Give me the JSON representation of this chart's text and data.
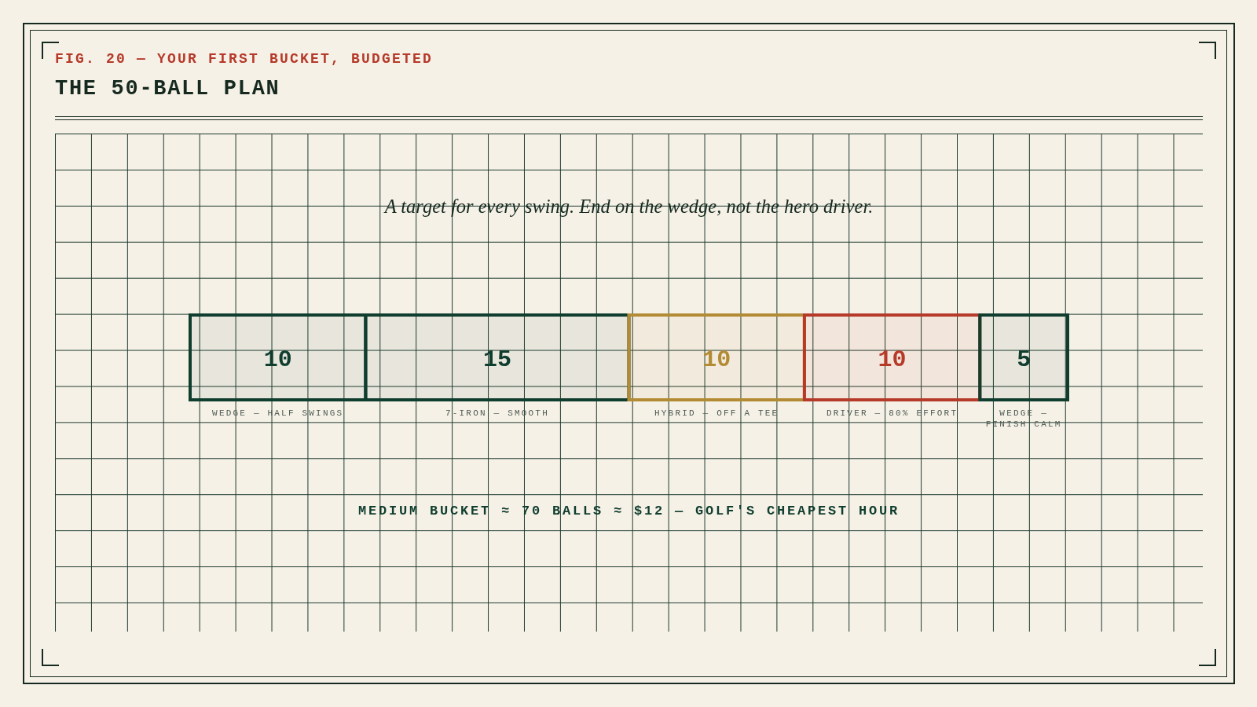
{
  "chart_data": {
    "type": "bar",
    "title": "THE 50-BALL PLAN",
    "subtitle": "A target for every swing. End on the wedge, not the hero driver.",
    "annotations": [
      "FIG. 20 — YOUR FIRST BUCKET, BUDGETED",
      "MEDIUM BUCKET ≈ 70 BALLS ≈ $12 — GOLF'S CHEAPEST HOUR"
    ],
    "orientation": "horizontal",
    "stacked": true,
    "categories": [
      null
    ],
    "series": [
      {
        "name": "WEDGE — HALF SWINGS",
        "color": "#0f3d2e",
        "values": [
          10
        ]
      },
      {
        "name": "7-IRON — SMOOTH",
        "color": "#0f3d2e",
        "values": [
          15
        ]
      },
      {
        "name": "HYBRID — OFF A TEE",
        "color": "#b38b35",
        "values": [
          10
        ]
      },
      {
        "name": "DRIVER — 80% EFFORT",
        "color": "#b63a2a",
        "values": [
          10
        ]
      },
      {
        "name": "WEDGE — FINISH CALM",
        "color": "#0f3d2e",
        "values": [
          5
        ]
      }
    ],
    "data_labels": true,
    "tick_labels": false,
    "legend": false
  }
}
